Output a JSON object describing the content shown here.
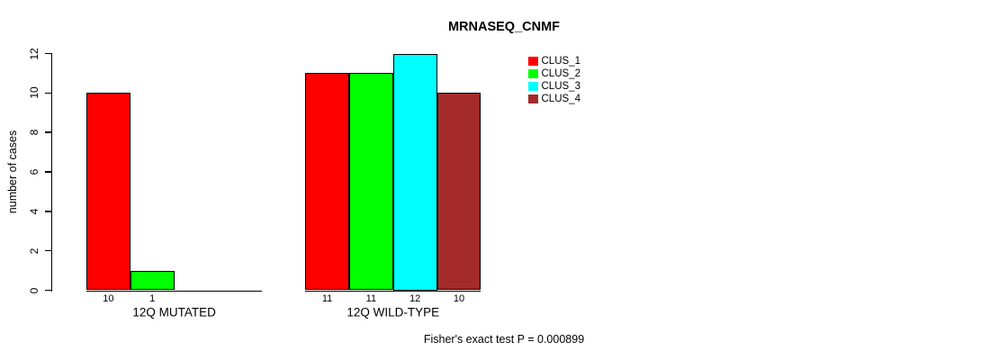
{
  "chart_data": {
    "type": "bar",
    "title": "MRNASEQ_CNMF",
    "ylabel": "number of cases",
    "xlabel": "",
    "ylim": [
      0,
      12
    ],
    "yticks": [
      0,
      2,
      4,
      6,
      8,
      10,
      12
    ],
    "grid": false,
    "legend_position": "top-right-of-plot",
    "categories": [
      "12Q MUTATED",
      "12Q WILD-TYPE"
    ],
    "series": [
      {
        "name": "CLUS_1",
        "color": "#FF0000",
        "values": [
          10,
          11
        ]
      },
      {
        "name": "CLUS_2",
        "color": "#00FF00",
        "values": [
          1,
          11
        ]
      },
      {
        "name": "CLUS_3",
        "color": "#00FFFF",
        "values": [
          0,
          12
        ]
      },
      {
        "name": "CLUS_4",
        "color": "#A52A2A",
        "values": [
          0,
          10
        ]
      }
    ],
    "bar_value_labels": [
      [
        "10",
        "1",
        "",
        ""
      ],
      [
        "11",
        "11",
        "12",
        "10"
      ]
    ],
    "annotation": "Fisher's exact test P = 0.000899"
  }
}
